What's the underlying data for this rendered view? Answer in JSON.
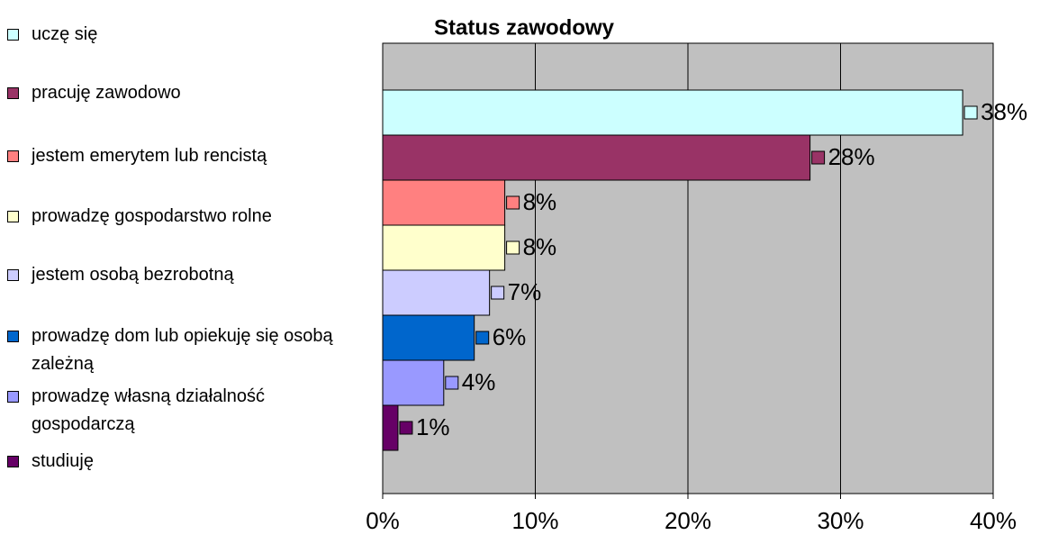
{
  "chart_data": {
    "type": "barh",
    "title": "Status zawodowy",
    "categories": [
      "uczę się",
      "pracuję zawodowo",
      "jestem emerytem lub rencistą",
      "prowadzę gospodarstwo rolne",
      "jestem osobą bezrobotną",
      "prowadzę dom lub opiekuję się osobą zależną",
      "prowadzę własną działalność gospodarczą",
      "studiuję"
    ],
    "values": [
      38,
      28,
      8,
      8,
      7,
      6,
      4,
      1
    ],
    "value_labels": [
      "38%",
      "28%",
      "8%",
      "8%",
      "7%",
      "6%",
      "4%",
      "1%"
    ],
    "colors": [
      "#ccffff",
      "#993366",
      "#ff8080",
      "#ffffcc",
      "#ccccff",
      "#0066cc",
      "#9999ff",
      "#660066"
    ],
    "xlim": [
      0,
      40
    ],
    "xticks": [
      {
        "value": 0,
        "label": "0%"
      },
      {
        "value": 10,
        "label": "10%"
      },
      {
        "value": 20,
        "label": "20%"
      },
      {
        "value": 30,
        "label": "30%"
      },
      {
        "value": 40,
        "label": "40%"
      }
    ],
    "grid": true,
    "legend": "left"
  }
}
